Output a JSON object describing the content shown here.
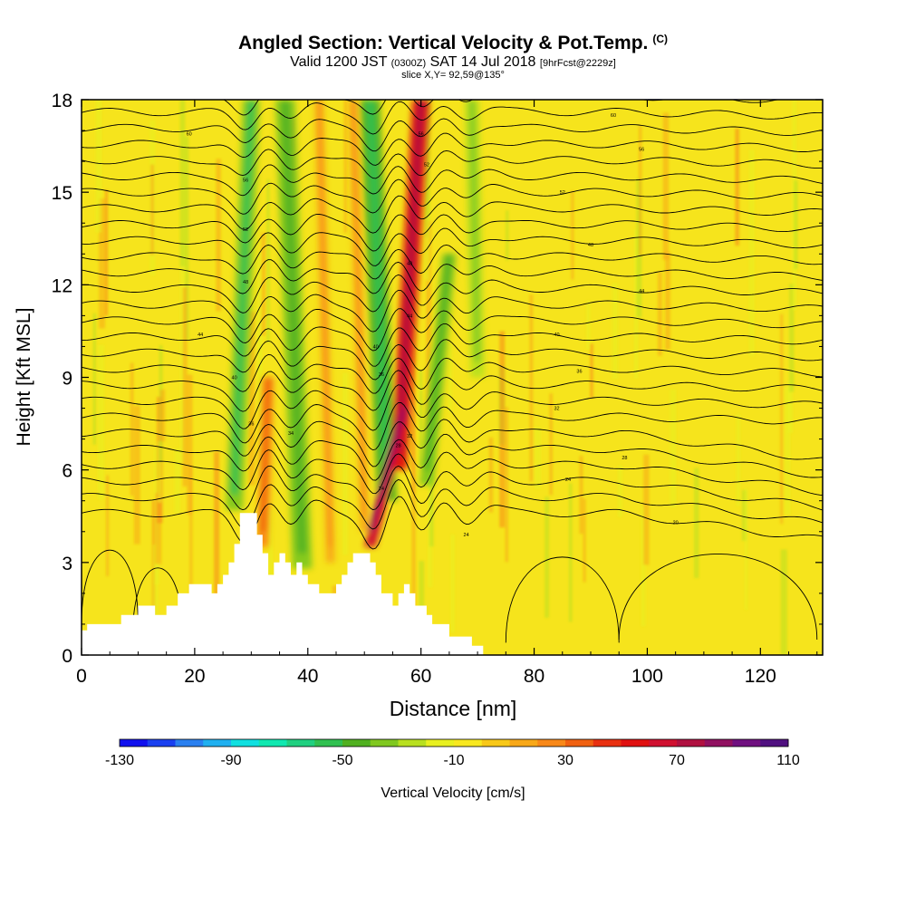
{
  "chart_data": {
    "type": "heatmap",
    "title": "Angled Section: Vertical Velocity & Pot.Temp.",
    "title_unit": "(C)",
    "subtitle_parts": {
      "valid": "Valid 1200 JST",
      "zulu": "(0300Z)",
      "date": "SAT 14 Jul 2018",
      "forecast": "[9hrFcst@2229z]"
    },
    "slice": "slice X,Y= 92,59@135°",
    "xlabel": "Distance [nm]",
    "ylabel": "Height [Kft MSL]",
    "xlim": [
      0,
      131
    ],
    "ylim": [
      0,
      18
    ],
    "x_ticks": [
      0,
      20,
      40,
      60,
      80,
      100,
      120
    ],
    "y_ticks": [
      0,
      3,
      6,
      9,
      12,
      15,
      18
    ],
    "grid": false,
    "colorbar": {
      "label": "Vertical Velocity [cm/s]",
      "tick_values": [
        -130,
        -90,
        -50,
        -10,
        30,
        70,
        110
      ],
      "colors": [
        "#1010ee",
        "#1a40f0",
        "#2a80f0",
        "#20b0f0",
        "#10e0e0",
        "#10e8b0",
        "#20d080",
        "#30c050",
        "#50b020",
        "#80c820",
        "#b8e020",
        "#e8f020",
        "#f8e820",
        "#f8c818",
        "#f8a818",
        "#f88818",
        "#f06010",
        "#e83010",
        "#e01010",
        "#d01030",
        "#b01040",
        "#901060",
        "#701080",
        "#501080"
      ]
    },
    "terrain": [
      [
        0,
        0.8
      ],
      [
        1,
        0.8
      ],
      [
        1,
        1.0
      ],
      [
        7,
        1.0
      ],
      [
        7,
        1.3
      ],
      [
        10,
        1.3
      ],
      [
        10,
        1.6
      ],
      [
        13,
        1.6
      ],
      [
        13,
        1.3
      ],
      [
        15,
        1.3
      ],
      [
        15,
        1.6
      ],
      [
        17,
        1.6
      ],
      [
        17,
        2.0
      ],
      [
        19,
        2.0
      ],
      [
        19,
        2.3
      ],
      [
        23,
        2.3
      ],
      [
        23,
        2.0
      ],
      [
        24,
        2.0
      ],
      [
        24,
        2.3
      ],
      [
        25,
        2.3
      ],
      [
        25,
        2.6
      ],
      [
        26,
        2.6
      ],
      [
        26,
        3.0
      ],
      [
        27,
        3.0
      ],
      [
        27,
        3.6
      ],
      [
        28,
        3.6
      ],
      [
        28,
        4.6
      ],
      [
        31,
        4.6
      ],
      [
        31,
        3.9
      ],
      [
        32,
        3.9
      ],
      [
        32,
        3.3
      ],
      [
        33,
        3.3
      ],
      [
        33,
        2.6
      ],
      [
        34,
        2.6
      ],
      [
        34,
        3.0
      ],
      [
        35,
        3.0
      ],
      [
        35,
        3.3
      ],
      [
        36,
        3.3
      ],
      [
        36,
        3.0
      ],
      [
        37,
        3.0
      ],
      [
        37,
        2.6
      ],
      [
        38,
        2.6
      ],
      [
        38,
        3.0
      ],
      [
        39,
        3.0
      ],
      [
        39,
        2.6
      ],
      [
        40,
        2.6
      ],
      [
        40,
        2.3
      ],
      [
        42,
        2.3
      ],
      [
        42,
        2.0
      ],
      [
        45,
        2.0
      ],
      [
        45,
        2.3
      ],
      [
        46,
        2.3
      ],
      [
        46,
        2.6
      ],
      [
        47,
        2.6
      ],
      [
        47,
        3.0
      ],
      [
        48,
        3.0
      ],
      [
        48,
        3.3
      ],
      [
        51,
        3.3
      ],
      [
        51,
        3.0
      ],
      [
        52,
        3.0
      ],
      [
        52,
        2.6
      ],
      [
        53,
        2.6
      ],
      [
        53,
        2.0
      ],
      [
        55,
        2.0
      ],
      [
        55,
        1.6
      ],
      [
        56,
        1.6
      ],
      [
        56,
        2.0
      ],
      [
        57,
        2.0
      ],
      [
        57,
        2.3
      ],
      [
        58,
        2.3
      ],
      [
        58,
        2.0
      ],
      [
        59,
        2.0
      ],
      [
        59,
        1.6
      ],
      [
        61,
        1.6
      ],
      [
        61,
        1.3
      ],
      [
        62,
        1.3
      ],
      [
        62,
        1.0
      ],
      [
        65,
        1.0
      ],
      [
        65,
        0.6
      ],
      [
        69,
        0.6
      ],
      [
        69,
        0.3
      ],
      [
        71,
        0.3
      ],
      [
        71,
        0
      ]
    ],
    "wave_bands": [
      {
        "x_top": 30,
        "x_bottom": 27,
        "y_bottom": 4.7,
        "y_top": 18,
        "width": 3.0,
        "value": -40
      },
      {
        "x_top": 36,
        "x_bottom": 39,
        "y_bottom": 2.8,
        "y_top": 18,
        "width": 3.5,
        "value": -35
      },
      {
        "x_top": 51,
        "x_bottom": 54,
        "y_bottom": 5.0,
        "y_top": 18,
        "width": 3.5,
        "value": -45
      },
      {
        "x_top": 65,
        "x_bottom": 61,
        "y_bottom": 5.5,
        "y_top": 13,
        "width": 2.5,
        "value": -35
      },
      {
        "x_top": 69,
        "x_bottom": 70,
        "y_bottom": 9,
        "y_top": 18,
        "width": 2.5,
        "value": -25
      },
      {
        "x_top": 60,
        "x_bottom": 56,
        "y_bottom": 6,
        "y_top": 18,
        "width": 3.0,
        "value": 60
      },
      {
        "x_top": 57,
        "x_bottom": 51,
        "y_bottom": 3.5,
        "y_top": 8,
        "width": 2.0,
        "value": 70
      },
      {
        "x_top": 33,
        "x_bottom": 32,
        "y_bottom": 3.5,
        "y_top": 9,
        "width": 2.0,
        "value": 30
      },
      {
        "x_top": 42,
        "x_bottom": 44,
        "y_bottom": 3,
        "y_top": 18,
        "width": 1.5,
        "value": 20
      },
      {
        "x_top": 48,
        "x_bottom": 50,
        "y_bottom": 4,
        "y_top": 18,
        "width": 1.5,
        "value": 20
      }
    ],
    "isotherm_labels": [
      {
        "x": 19,
        "y": 16.9,
        "text": "60"
      },
      {
        "x": 29,
        "y": 15.4,
        "text": "56"
      },
      {
        "x": 29,
        "y": 13.8,
        "text": "52"
      },
      {
        "x": 29,
        "y": 12.1,
        "text": "48"
      },
      {
        "x": 21,
        "y": 10.4,
        "text": "44"
      },
      {
        "x": 27,
        "y": 9.0,
        "text": "40"
      },
      {
        "x": 30,
        "y": 7.5,
        "text": "36"
      },
      {
        "x": 37,
        "y": 7.2,
        "text": "34"
      },
      {
        "x": 60,
        "y": 16.9,
        "text": "56"
      },
      {
        "x": 61,
        "y": 15.9,
        "text": "52"
      },
      {
        "x": 58,
        "y": 12.7,
        "text": "48"
      },
      {
        "x": 58,
        "y": 11.0,
        "text": "44"
      },
      {
        "x": 52,
        "y": 10.0,
        "text": "40"
      },
      {
        "x": 53,
        "y": 9.1,
        "text": "36"
      },
      {
        "x": 58,
        "y": 7.1,
        "text": "32"
      },
      {
        "x": 56,
        "y": 6.8,
        "text": "28"
      },
      {
        "x": 53,
        "y": 5.4,
        "text": "24"
      },
      {
        "x": 68,
        "y": 3.9,
        "text": "24"
      },
      {
        "x": 94,
        "y": 17.5,
        "text": "60"
      },
      {
        "x": 99,
        "y": 16.4,
        "text": "56"
      },
      {
        "x": 85,
        "y": 15.0,
        "text": "52"
      },
      {
        "x": 90,
        "y": 13.3,
        "text": "48"
      },
      {
        "x": 99,
        "y": 11.8,
        "text": "44"
      },
      {
        "x": 84,
        "y": 10.4,
        "text": "40"
      },
      {
        "x": 88,
        "y": 9.2,
        "text": "36"
      },
      {
        "x": 84,
        "y": 8.0,
        "text": "32"
      },
      {
        "x": 96,
        "y": 6.4,
        "text": "28"
      },
      {
        "x": 86,
        "y": 5.7,
        "text": "24"
      },
      {
        "x": 105,
        "y": 4.3,
        "text": "20"
      }
    ]
  }
}
